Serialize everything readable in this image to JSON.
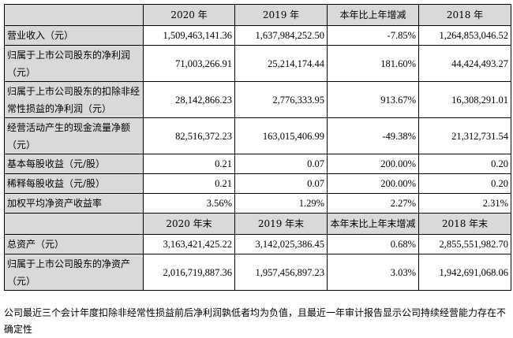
{
  "header1": [
    "",
    "2020 年",
    "2019 年",
    "本年比上年增减",
    "2018 年"
  ],
  "rows1": [
    {
      "label": "营业收入（元）",
      "values": [
        "1,509,463,141.36",
        "1,637,984,252.50",
        "-7.85%",
        "1,264,853,046.52"
      ],
      "tall": false
    },
    {
      "label": "归属于上市公司股东的净利润（元）",
      "values": [
        "71,003,266.91",
        "25,214,174.44",
        "181.60%",
        "44,424,493.27"
      ],
      "tall": true
    },
    {
      "label": "归属于上市公司股东的扣除非经常性损益的净利润（元）",
      "values": [
        "28,142,866.23",
        "2,776,333.95",
        "913.67%",
        "16,308,291.01"
      ],
      "tall": true
    },
    {
      "label": "经营活动产生的现金流量净额（元）",
      "values": [
        "82,516,372.23",
        "163,015,406.99",
        "-49.38%",
        "21,312,731.54"
      ],
      "tall": true
    },
    {
      "label": "基本每股收益（元/股）",
      "values": [
        "0.21",
        "0.07",
        "200.00%",
        "0.20"
      ],
      "tall": false
    },
    {
      "label": "稀释每股收益（元/股）",
      "values": [
        "0.21",
        "0.07",
        "200.00%",
        "0.20"
      ],
      "tall": false
    },
    {
      "label": "加权平均净资产收益率",
      "values": [
        "3.56%",
        "1.29%",
        "2.27%",
        "2.31%"
      ],
      "tall": false
    }
  ],
  "header2": [
    "",
    "2020 年末",
    "2019 年末",
    "本年末比上年末增减",
    "2018 年末"
  ],
  "rows2": [
    {
      "label": "总资产（元）",
      "values": [
        "3,163,421,425.22",
        "3,142,025,386.45",
        "0.68%",
        "2,855,551,982.70"
      ],
      "tall": false
    },
    {
      "label": "归属于上市公司股东的净资产（元）",
      "values": [
        "2,016,719,887.36",
        "1,957,456,897.23",
        "3.03%",
        "1,942,691,068.06"
      ],
      "tall": true
    }
  ],
  "note": "公司最近三个会计年度扣除非经常性损益前后净利润孰低者均为负值，且最近一年审计报告显示公司持续经营能力存在不确定性"
}
